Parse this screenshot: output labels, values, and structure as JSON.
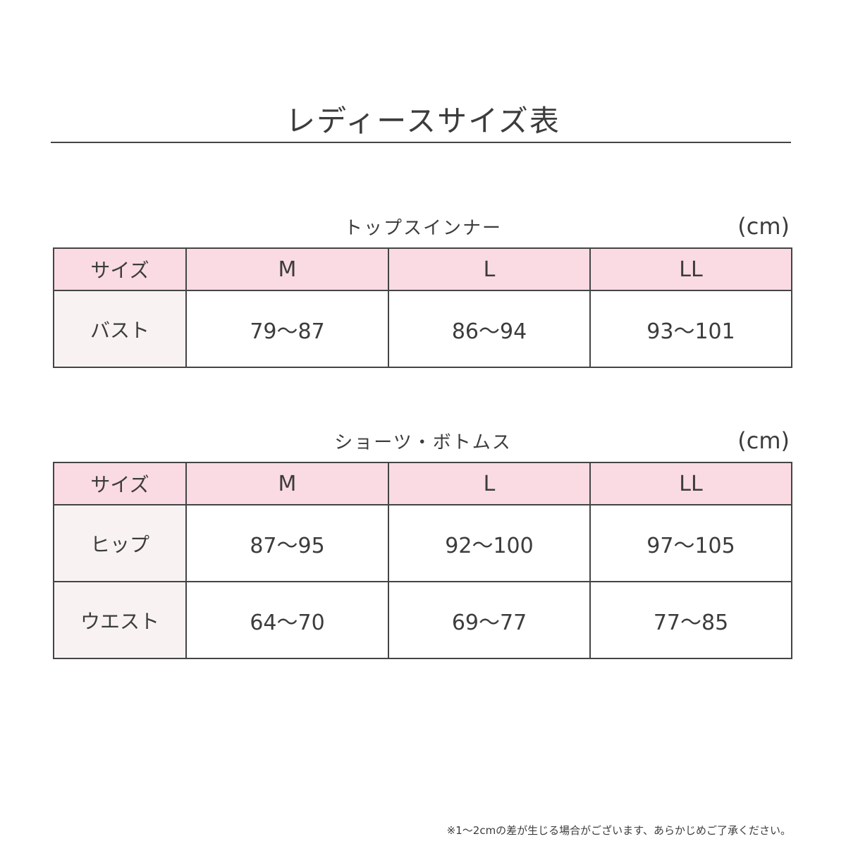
{
  "title": "レディースサイズ表",
  "tables": [
    {
      "caption": "トップスインナー",
      "unit": "(cm)",
      "header": [
        "サイズ",
        "M",
        "L",
        "LL"
      ],
      "rows": [
        {
          "label": "バスト",
          "values": [
            "79〜87",
            "86〜94",
            "93〜101"
          ]
        }
      ]
    },
    {
      "caption": "ショーツ・ボトムス",
      "unit": "(cm)",
      "header": [
        "サイズ",
        "M",
        "L",
        "LL"
      ],
      "rows": [
        {
          "label": "ヒップ",
          "values": [
            "87〜95",
            "92〜100",
            "97〜105"
          ]
        },
        {
          "label": "ウエスト",
          "values": [
            "64〜70",
            "69〜77",
            "77〜85"
          ]
        }
      ]
    }
  ],
  "footnote": "※1〜2cmの差が生じる場合がございます、あらかじめご了承ください。",
  "colors": {
    "header_bg": "#fadbe3",
    "label_bg": "#f8f3f2",
    "border": "#444444"
  }
}
